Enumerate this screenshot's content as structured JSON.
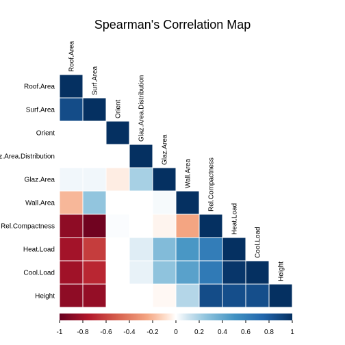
{
  "chart_data": {
    "type": "heatmap",
    "title": "Spearman's Correlation Map",
    "variables": [
      "Roof.Area",
      "Surf.Area",
      "Orient",
      "Glaz.Area.Distribution",
      "Glaz.Area",
      "Wall.Area",
      "Rel.Compactness",
      "Heat.Load",
      "Cool.Load",
      "Height"
    ],
    "shape": "lower-triangular",
    "matrix": [
      [
        1.0
      ],
      [
        0.87,
        1.0
      ],
      [
        0.0,
        0.0,
        1.0
      ],
      [
        0.0,
        0.0,
        0.0,
        1.0
      ],
      [
        0.03,
        0.03,
        -0.05,
        0.2,
        1.0
      ],
      [
        -0.2,
        0.25,
        0.0,
        0.0,
        0.02,
        1.0
      ],
      [
        -0.87,
        -0.97,
        0.01,
        0.0,
        -0.03,
        -0.25,
        1.0
      ],
      [
        -0.8,
        -0.62,
        0.0,
        0.07,
        0.3,
        0.48,
        0.62,
        1.0
      ],
      [
        -0.81,
        -0.7,
        0.0,
        0.05,
        0.26,
        0.43,
        0.64,
        0.97,
        1.0
      ],
      [
        -0.87,
        -0.85,
        0.0,
        0.0,
        -0.02,
        0.17,
        0.87,
        0.86,
        0.86,
        1.0
      ]
    ],
    "colorbar": {
      "range": [
        -1,
        1
      ],
      "ticks": [
        "-1",
        "-0.8",
        "-0.6",
        "-0.4",
        "-0.2",
        "0",
        "0.2",
        "0.4",
        "0.6",
        "0.8",
        "1"
      ],
      "orientation": "horizontal",
      "position": "bottom"
    },
    "colors": {
      "negative": "#67001f",
      "neutral": "#ffffff",
      "positive": "#053061"
    }
  }
}
